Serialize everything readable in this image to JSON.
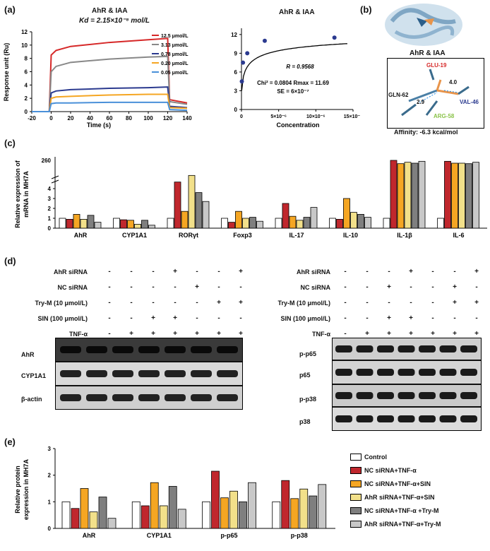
{
  "panels": {
    "a": "(a)",
    "b": "(b)",
    "c": "(c)",
    "d": "(d)",
    "e": "(e)"
  },
  "spr": {
    "title": "AhR & IAA",
    "kd": "Kd = 2.15×10⁻⁸ mol/L",
    "ylabel": "Response unit (Ru)",
    "xlabel": "Time (s)",
    "yticks": [
      "0",
      "2",
      "4",
      "6",
      "8",
      "10",
      "12"
    ],
    "xticks": [
      "-20",
      "0",
      "20",
      "40",
      "60",
      "80",
      "100",
      "120",
      "140"
    ],
    "legend": [
      {
        "label": "12.5 μmol/L",
        "color": "#d62828"
      },
      {
        "label": "3.13 μmol/L",
        "color": "#888888"
      },
      {
        "label": "0.78 μmol/L",
        "color": "#2b3a8f"
      },
      {
        "label": "0.20 μmol/L",
        "color": "#f5a623"
      },
      {
        "label": "0.05 μmol/L",
        "color": "#4a90d9"
      }
    ]
  },
  "fit": {
    "title": "AhR & IAA",
    "r": "R = 0.9568",
    "chi": "Chi² = 0.0804",
    "rmax": "Rmax = 11.69",
    "se": "SE = 6×10⁻⁷",
    "xlabel": "Concentration",
    "yticks": [
      "0",
      "3",
      "6",
      "9",
      "12"
    ],
    "xticks": [
      "0",
      "5×10⁻⁶",
      "10×10⁻⁶",
      "15×10⁻⁶"
    ]
  },
  "docking": {
    "title": "AhR & IAA",
    "glu": "GLU-19",
    "val": "VAL-46",
    "gln": "GLN-62",
    "arg": "ARG-58",
    "d1": "4.0",
    "d2": "2.9",
    "affinity": "Affinity: -6.3 kcal/mol"
  },
  "panel_c": {
    "ylabel_line1": "Relative expression of",
    "ylabel_line2": "mRNA in MH7A",
    "yticks_low": [
      "0",
      "1",
      "2",
      "3",
      "4"
    ],
    "ytick_high": "260",
    "genes": [
      "AhR",
      "CYP1A1",
      "RORγt",
      "Foxp3",
      "IL-17",
      "IL-10",
      "IL-1β",
      "IL-6"
    ]
  },
  "panel_d": {
    "left_conditions": [
      "AhR siRNA",
      "NC siRNA",
      "Try-M (10 μmol/L)",
      "SIN (100 μmol/L)",
      "TNF-α"
    ],
    "right_conditions": [
      "AhR siRNA",
      "NC siRNA",
      "Try-M (10 μmol/L)",
      "SIN (100 μmol/L)",
      "TNF-α"
    ],
    "left_signs": [
      [
        "-",
        "-",
        "-",
        "+",
        "-",
        "-",
        "+"
      ],
      [
        "-",
        "-",
        "-",
        "-",
        "+",
        "-",
        "-"
      ],
      [
        "-",
        "-",
        "-",
        "-",
        "-",
        "+",
        "+"
      ],
      [
        "-",
        "-",
        "+",
        "+",
        "-",
        "-",
        "-"
      ],
      [
        "-",
        "+",
        "+",
        "+",
        "+",
        "+",
        "+"
      ]
    ],
    "right_signs": [
      [
        "-",
        "-",
        "-",
        "+",
        "-",
        "-",
        "+"
      ],
      [
        "-",
        "-",
        "+",
        "-",
        "-",
        "+",
        "-"
      ],
      [
        "-",
        "-",
        "-",
        "-",
        "-",
        "+",
        "+"
      ],
      [
        "-",
        "-",
        "+",
        "+",
        "-",
        "-",
        "-"
      ],
      [
        "-",
        "+",
        "+",
        "+",
        "+",
        "+",
        "+"
      ]
    ],
    "left_bands": [
      "AhR",
      "CYP1A1",
      "β-actin"
    ],
    "right_bands": [
      "p-p65",
      "p65",
      "p-p38",
      "p38"
    ]
  },
  "panel_e": {
    "ylabel_line1": "Relative protein",
    "ylabel_line2": "expression in MH7A",
    "yticks": [
      "0",
      "1",
      "2",
      "3"
    ],
    "groups": [
      "AhR",
      "CYP1A1",
      "p-p65",
      "p-p38"
    ],
    "legend": [
      {
        "label": "Control",
        "color": "#ffffff"
      },
      {
        "label": "NC siRNA+TNF-α",
        "color": "#c0272d"
      },
      {
        "label": "NC siRNA+TNF-α+SIN",
        "color": "#f5a623"
      },
      {
        "label": "AhR siRNA+TNF-α+SIN",
        "color": "#f2e08a"
      },
      {
        "label": "NC siRNA+TNF-α +Try-M",
        "color": "#7f7f7f"
      },
      {
        "label": "AhR siRNA+TNF-α+Try-M",
        "color": "#c8c8c8"
      }
    ]
  },
  "chart_data": [
    {
      "type": "line",
      "title": "AhR & IAA",
      "xlabel": "Time (s)",
      "ylabel": "Response unit (Ru)",
      "xlim": [
        -20,
        140
      ],
      "ylim": [
        0,
        12
      ],
      "series": [
        {
          "name": "12.5 μmol/L",
          "x": [
            -20,
            -2,
            0,
            5,
            20,
            60,
            100,
            120,
            122,
            140
          ],
          "values": [
            0,
            0,
            8.5,
            9.2,
            9.8,
            10.4,
            10.8,
            11.0,
            1.8,
            1.3
          ]
        },
        {
          "name": "3.13 μmol/L",
          "x": [
            -20,
            -2,
            0,
            5,
            20,
            60,
            100,
            120,
            122,
            140
          ],
          "values": [
            0,
            0,
            6.0,
            6.8,
            7.4,
            7.9,
            8.2,
            8.3,
            1.5,
            1.1
          ]
        },
        {
          "name": "0.78 μmol/L",
          "x": [
            -20,
            -2,
            0,
            5,
            20,
            60,
            100,
            120,
            122,
            140
          ],
          "values": [
            0,
            0,
            2.8,
            3.1,
            3.3,
            3.5,
            3.6,
            3.7,
            0.8,
            0.6
          ]
        },
        {
          "name": "0.20 μmol/L",
          "x": [
            -20,
            -2,
            0,
            5,
            20,
            60,
            100,
            120,
            122,
            140
          ],
          "values": [
            0,
            0,
            2.0,
            2.2,
            2.3,
            2.5,
            2.6,
            2.6,
            0.6,
            0.5
          ]
        },
        {
          "name": "0.05 μmol/L",
          "x": [
            -20,
            -2,
            0,
            5,
            20,
            60,
            100,
            120,
            122,
            140
          ],
          "values": [
            0,
            0,
            1.2,
            1.3,
            1.3,
            1.4,
            1.4,
            1.4,
            0.3,
            0.2
          ]
        }
      ]
    },
    {
      "type": "scatter",
      "title": "AhR & IAA",
      "xlabel": "Concentration",
      "ylim": [
        0,
        13
      ],
      "points": [
        {
          "x": 5e-08,
          "y": 4.5
        },
        {
          "x": 2e-07,
          "y": 7.5
        },
        {
          "x": 7.8e-07,
          "y": 9.0
        },
        {
          "x": 3.13e-06,
          "y": 11.0
        },
        {
          "x": 1.25e-05,
          "y": 11.5
        }
      ]
    },
    {
      "type": "bar",
      "title": "",
      "ylabel": "Relative expression of mRNA in MH7A",
      "categories": [
        "AhR",
        "CYP1A1",
        "RORγt",
        "Foxp3",
        "IL-17",
        "IL-10",
        "IL-1β",
        "IL-6"
      ],
      "series": [
        {
          "values": [
            1.0,
            1.0,
            1.0,
            1.0,
            1.0,
            1.0,
            1.0,
            1.0
          ]
        },
        {
          "values": [
            0.9,
            0.85,
            30,
            0.6,
            2.5,
            0.9,
            260,
            250
          ]
        },
        {
          "values": [
            1.4,
            0.8,
            1.7,
            1.7,
            1.2,
            3.0,
            225,
            230
          ]
        },
        {
          "values": [
            0.9,
            0.4,
            100,
            1.0,
            0.8,
            1.6,
            240,
            230
          ]
        },
        {
          "values": [
            1.3,
            0.8,
            3.6,
            1.1,
            1.1,
            1.4,
            230,
            225
          ]
        },
        {
          "values": [
            0.6,
            0.3,
            2.7,
            0.7,
            2.1,
            1.1,
            250,
            240
          ]
        }
      ]
    },
    {
      "type": "bar",
      "title": "",
      "ylabel": "Relative protein expression in MH7A",
      "categories": [
        "AhR",
        "CYP1A1",
        "p-p65",
        "p-p38"
      ],
      "ylim": [
        0,
        3
      ],
      "series": [
        {
          "name": "Control",
          "values": [
            1.0,
            1.0,
            1.0,
            1.0
          ]
        },
        {
          "name": "NC siRNA+TNF-α",
          "values": [
            0.75,
            0.85,
            2.15,
            1.8
          ]
        },
        {
          "name": "NC siRNA+TNF-α+SIN",
          "values": [
            1.5,
            1.72,
            1.15,
            1.12
          ]
        },
        {
          "name": "AhR siRNA+TNF-α+SIN",
          "values": [
            0.62,
            0.85,
            1.4,
            1.48
          ]
        },
        {
          "name": "NC siRNA+TNF-α +Try-M",
          "values": [
            1.18,
            1.58,
            1.0,
            1.22
          ]
        },
        {
          "name": "AhR siRNA+TNF-α+Try-M",
          "values": [
            0.38,
            0.72,
            1.72,
            1.65
          ]
        }
      ]
    }
  ]
}
